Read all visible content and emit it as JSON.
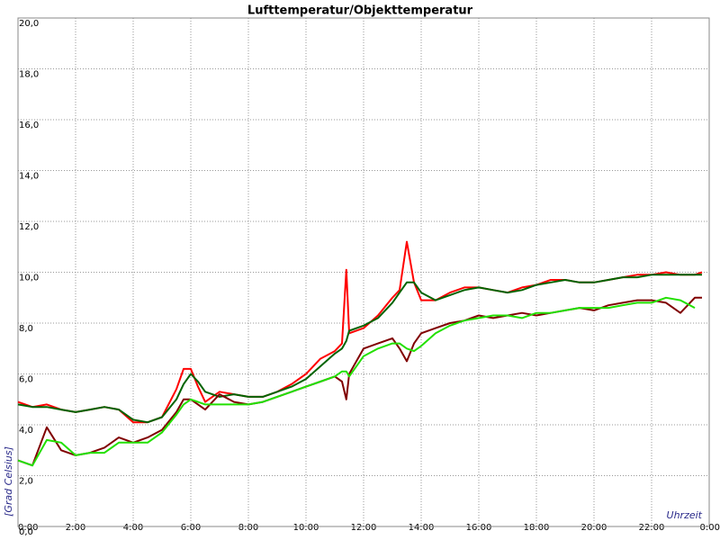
{
  "chart_data": {
    "type": "line",
    "title": "Lufttemperatur/Objekttemperatur",
    "ylabel": "[Grad Celsius]",
    "xlabel": "Uhrzeit",
    "grid": true,
    "xlim": [
      0,
      24
    ],
    "ylim": [
      0,
      20
    ],
    "xticks": [
      {
        "value": 0,
        "label": "0:00"
      },
      {
        "value": 2,
        "label": "2:00"
      },
      {
        "value": 4,
        "label": "4:00"
      },
      {
        "value": 6,
        "label": "6:00"
      },
      {
        "value": 8,
        "label": "8:00"
      },
      {
        "value": 10,
        "label": "10:00"
      },
      {
        "value": 12,
        "label": "12:00"
      },
      {
        "value": 14,
        "label": "14:00"
      },
      {
        "value": 16,
        "label": "16:00"
      },
      {
        "value": 18,
        "label": "18:00"
      },
      {
        "value": 20,
        "label": "20:00"
      },
      {
        "value": 22,
        "label": "22:00"
      },
      {
        "value": 24,
        "label": "0:00"
      }
    ],
    "yticks": [
      {
        "value": 0,
        "label": "0,0"
      },
      {
        "value": 2,
        "label": "2,0"
      },
      {
        "value": 4,
        "label": "4,0"
      },
      {
        "value": 6,
        "label": "6,0"
      },
      {
        "value": 8,
        "label": "8,0"
      },
      {
        "value": 10,
        "label": "10,0"
      },
      {
        "value": 12,
        "label": "12,0"
      },
      {
        "value": 14,
        "label": "14,0"
      },
      {
        "value": 16,
        "label": "16,0"
      },
      {
        "value": 18,
        "label": "18,0"
      },
      {
        "value": 20,
        "label": "20,0"
      }
    ],
    "x": [
      0,
      0.5,
      1,
      1.5,
      2,
      2.5,
      3,
      3.5,
      4,
      4.5,
      5,
      5.5,
      5.75,
      6,
      6.25,
      6.5,
      7,
      7.5,
      8,
      8.5,
      9,
      9.5,
      10,
      10.5,
      11,
      11.25,
      11.4,
      11.5,
      12,
      12.5,
      13,
      13.25,
      13.5,
      13.75,
      14,
      14.5,
      15,
      15.5,
      16,
      16.5,
      17,
      17.5,
      18,
      18.5,
      19,
      19.5,
      20,
      20.5,
      21,
      21.5,
      22,
      22.5,
      23,
      23.5,
      23.75
    ],
    "series": [
      {
        "color": "#ff0000",
        "values": [
          4.9,
          4.7,
          4.8,
          4.6,
          4.5,
          4.6,
          4.7,
          4.6,
          4.1,
          4.1,
          4.3,
          5.4,
          6.2,
          6.2,
          5.5,
          4.9,
          5.3,
          5.2,
          5.1,
          5.1,
          5.3,
          5.6,
          6.0,
          6.6,
          6.9,
          7.2,
          10.1,
          7.6,
          7.8,
          8.3,
          9.0,
          9.3,
          11.2,
          9.6,
          8.9,
          8.9,
          9.2,
          9.4,
          9.4,
          9.3,
          9.2,
          9.4,
          9.5,
          9.7,
          9.7,
          9.6,
          9.6,
          9.7,
          9.8,
          9.9,
          9.9,
          10.0,
          9.9,
          9.9,
          10.0
        ]
      },
      {
        "color": "#006400",
        "values": [
          4.8,
          4.7,
          4.7,
          4.6,
          4.5,
          4.6,
          4.7,
          4.6,
          4.2,
          4.1,
          4.3,
          5.0,
          5.6,
          6.0,
          5.7,
          5.3,
          5.1,
          5.2,
          5.1,
          5.1,
          5.3,
          5.5,
          5.8,
          6.3,
          6.8,
          7.0,
          7.3,
          7.7,
          7.9,
          8.2,
          8.8,
          9.2,
          9.6,
          9.6,
          9.2,
          8.9,
          9.1,
          9.3,
          9.4,
          9.3,
          9.2,
          9.3,
          9.5,
          9.6,
          9.7,
          9.6,
          9.6,
          9.7,
          9.8,
          9.8,
          9.9,
          9.9,
          9.9,
          9.9,
          9.9
        ]
      },
      {
        "color": "#800000",
        "values": [
          2.6,
          2.4,
          3.9,
          3.0,
          2.8,
          2.9,
          3.1,
          3.5,
          3.3,
          3.5,
          3.8,
          4.5,
          5.0,
          5.0,
          4.8,
          4.6,
          5.2,
          4.9,
          4.8,
          4.9,
          5.1,
          5.3,
          5.5,
          5.7,
          5.9,
          5.7,
          5.0,
          6.0,
          7.0,
          7.2,
          7.4,
          7.0,
          6.5,
          7.2,
          7.6,
          7.8,
          8.0,
          8.1,
          8.3,
          8.2,
          8.3,
          8.4,
          8.3,
          8.4,
          8.5,
          8.6,
          8.5,
          8.7,
          8.8,
          8.9,
          8.9,
          8.8,
          8.4,
          9.0,
          9.0
        ]
      },
      {
        "color": "#22e000",
        "values": [
          2.6,
          2.4,
          3.4,
          3.3,
          2.8,
          2.9,
          2.9,
          3.3,
          3.3,
          3.3,
          3.7,
          4.4,
          4.8,
          5.0,
          4.9,
          4.8,
          4.8,
          4.8,
          4.8,
          4.9,
          5.1,
          5.3,
          5.5,
          5.7,
          5.9,
          6.1,
          6.1,
          5.9,
          6.7,
          7.0,
          7.2,
          7.2,
          7.0,
          6.9,
          7.1,
          7.6,
          7.9,
          8.1,
          8.2,
          8.3,
          8.3,
          8.2,
          8.4,
          8.4,
          8.5,
          8.6,
          8.6,
          8.6,
          8.7,
          8.8,
          8.8,
          9.0,
          8.9,
          8.6,
          null
        ]
      }
    ]
  }
}
